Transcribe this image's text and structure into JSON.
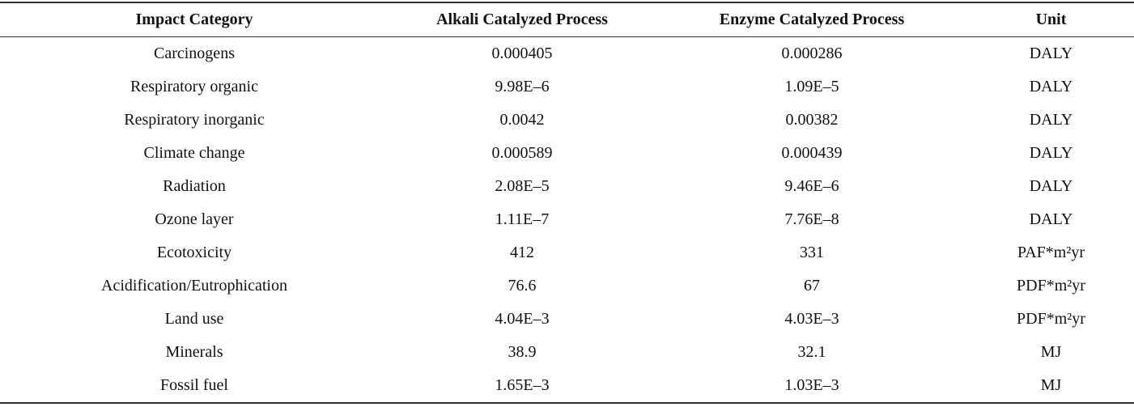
{
  "table": {
    "header": [
      "Impact Category",
      "Alkali Catalyzed Process",
      "Enzyme Catalyzed Process",
      "Unit"
    ],
    "rows": [
      [
        "Carcinogens",
        "0.000405",
        "0.000286",
        "DALY"
      ],
      [
        "Respiratory organic",
        "9.98E–6",
        "1.09E–5",
        "DALY"
      ],
      [
        "Respiratory inorganic",
        "0.0042",
        "0.00382",
        "DALY"
      ],
      [
        "Climate change",
        "0.000589",
        "0.000439",
        "DALY"
      ],
      [
        "Radiation",
        "2.08E–5",
        "9.46E–6",
        "DALY"
      ],
      [
        "Ozone layer",
        "1.11E–7",
        "7.76E–8",
        "DALY"
      ],
      [
        "Ecotoxicity",
        "412",
        "331",
        "PAF*m²yr"
      ],
      [
        "Acidification/Eutrophication",
        "76.6",
        "67",
        "PDF*m²yr"
      ],
      [
        "Land use",
        "4.04E–3",
        "4.03E–3",
        "PDF*m²yr"
      ],
      [
        "Minerals",
        "38.9",
        "32.1",
        "MJ"
      ],
      [
        "Fossil fuel",
        "1.65E–3",
        "1.03E–3",
        "MJ"
      ]
    ]
  }
}
